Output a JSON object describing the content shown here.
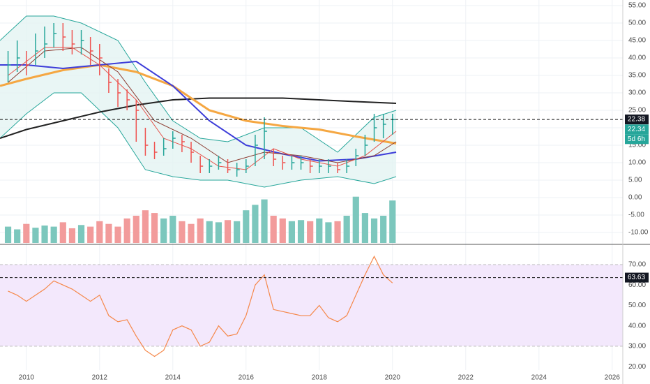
{
  "chart_data": [
    {
      "type": "ohlc",
      "xlim": [
        2009.28,
        2026.29
      ],
      "ylim": [
        -13.4,
        56.6
      ],
      "grid": true,
      "yticks": [
        {
          "value": 55,
          "label": "55.00"
        },
        {
          "value": 50,
          "label": "50.00"
        },
        {
          "value": 45,
          "label": "45.00"
        },
        {
          "value": 40,
          "label": "40.00"
        },
        {
          "value": 35,
          "label": "35.00"
        },
        {
          "value": 30,
          "label": "30.00"
        },
        {
          "value": 25,
          "label": "25.00"
        },
        {
          "value": 20,
          "label": "20.00"
        },
        {
          "value": 15,
          "label": "15.00"
        },
        {
          "value": 10,
          "label": "10.00"
        },
        {
          "value": 5,
          "label": "5.00"
        },
        {
          "value": 0,
          "label": "0.00"
        },
        {
          "value": -5,
          "label": "-5.00"
        },
        {
          "value": -10,
          "label": "-10.00"
        }
      ],
      "colors": {
        "up": "#26a69a",
        "down": "#ef5350"
      },
      "x": [
        2009.5,
        2009.75,
        2010,
        2010.25,
        2010.5,
        2010.75,
        2011,
        2011.25,
        2011.5,
        2011.75,
        2012,
        2012.25,
        2012.5,
        2012.75,
        2013,
        2013.25,
        2013.5,
        2013.75,
        2014,
        2014.25,
        2014.5,
        2014.75,
        2015,
        2015.25,
        2015.5,
        2015.75,
        2016,
        2016.25,
        2016.5,
        2016.75,
        2017,
        2017.25,
        2017.5,
        2017.75,
        2018,
        2018.25,
        2018.5,
        2018.75,
        2019,
        2019.25,
        2019.5,
        2019.75,
        2020
      ],
      "high": [
        42,
        45,
        42,
        47,
        49,
        50,
        50,
        48,
        48,
        46,
        44,
        37,
        34,
        31,
        28,
        20,
        16,
        17,
        19,
        18,
        16,
        12,
        11,
        12,
        11,
        10,
        11,
        18,
        23,
        14,
        12,
        12,
        12,
        11,
        11,
        11,
        10,
        11,
        14,
        18,
        24,
        24,
        24
      ],
      "low": [
        33,
        36,
        35,
        38,
        40,
        43,
        42,
        41,
        41,
        38,
        35,
        30,
        26,
        25,
        16,
        12,
        11,
        12,
        14,
        13,
        10,
        7,
        7,
        8,
        7,
        6,
        7,
        9,
        11,
        9,
        8,
        8,
        8,
        7,
        7,
        7,
        7,
        7,
        9,
        12,
        16,
        17,
        18
      ],
      "close": [
        38,
        40,
        38,
        42,
        44,
        47,
        46,
        44,
        45,
        42,
        40,
        33,
        30,
        28,
        25,
        15,
        13,
        14,
        17,
        16,
        13,
        9,
        9,
        10,
        8,
        8,
        9,
        15,
        19,
        11,
        10,
        10,
        10,
        9,
        9,
        9,
        8,
        9,
        12,
        15,
        20,
        21,
        22.34
      ],
      "bollinger": {
        "color": "#26a69a",
        "fill": "#e3f4f2",
        "x": [
          2009.28,
          2010,
          2010.75,
          2011.5,
          2012.5,
          2013.25,
          2014,
          2014.75,
          2015.5,
          2016.5,
          2017.5,
          2018.5,
          2019.5,
          2020.1
        ],
        "upper": [
          45,
          52,
          52,
          50,
          45,
          33,
          22,
          17,
          16,
          20,
          20,
          13,
          23,
          25
        ],
        "lower": [
          17,
          24,
          30,
          30,
          20,
          8,
          6,
          5,
          5,
          3,
          5,
          6,
          4,
          6
        ]
      },
      "lines": [
        {
          "color": "#212121",
          "width": 2,
          "x": [
            2009.28,
            2010,
            2011,
            2012,
            2013,
            2014,
            2015,
            2016,
            2017,
            2018,
            2019,
            2020.1
          ],
          "values": [
            17,
            19.5,
            22,
            24.5,
            26.5,
            28,
            28.5,
            28.5,
            28.5,
            28,
            27.5,
            27
          ]
        },
        {
          "color": "#f5a742",
          "width": 3,
          "x": [
            2009.28,
            2010,
            2011,
            2012,
            2013,
            2014,
            2015,
            2016,
            2017,
            2018,
            2019,
            2020.1
          ],
          "values": [
            32,
            34,
            36.5,
            38,
            36,
            32,
            25,
            22,
            20.5,
            19.5,
            17.5,
            15.5
          ]
        },
        {
          "color": "#3d3dd9",
          "width": 2,
          "x": [
            2009.28,
            2010,
            2011,
            2012,
            2013,
            2014,
            2015,
            2016,
            2017,
            2018,
            2019,
            2020.1
          ],
          "values": [
            38,
            38,
            37,
            38,
            39,
            32,
            22,
            15,
            12.5,
            10.5,
            11,
            13
          ]
        },
        {
          "color": "#8b3a2f",
          "width": 1,
          "x": [
            2009.5,
            2010.5,
            2011.5,
            2012.5,
            2013.5,
            2014.5,
            2015.5,
            2016.5,
            2017.5,
            2018.5,
            2019.5,
            2020.1
          ],
          "values": [
            33,
            42,
            43,
            36,
            22,
            17,
            10,
            13,
            12,
            10,
            12,
            16
          ]
        },
        {
          "color": "#e5534b",
          "width": 1,
          "x": [
            2009.5,
            2010.5,
            2011.25,
            2012,
            2013,
            2013.75,
            2014.5,
            2015.25,
            2016,
            2016.75,
            2017.5,
            2018.5,
            2019.25,
            2020.1
          ],
          "values": [
            35,
            43,
            43,
            38,
            28,
            17,
            14,
            9,
            8,
            14,
            11,
            9,
            12,
            19
          ]
        }
      ],
      "last_line": {
        "value": 22.38,
        "label": "22.38"
      },
      "last_close": {
        "value": 22.34,
        "label": "22.34"
      },
      "countdown": "5d 6h"
    },
    {
      "type": "bar",
      "ylim": [
        0,
        100
      ],
      "colors": {
        "up": "#7cc7bd",
        "down": "#f29b9b"
      },
      "x": [
        2009.5,
        2009.75,
        2010,
        2010.25,
        2010.5,
        2010.75,
        2011,
        2011.25,
        2011.5,
        2011.75,
        2012,
        2012.25,
        2012.5,
        2012.75,
        2013,
        2013.25,
        2013.5,
        2013.75,
        2014,
        2014.25,
        2014.5,
        2014.75,
        2015,
        2015.25,
        2015.5,
        2015.75,
        2016,
        2016.25,
        2016.5,
        2016.75,
        2017,
        2017.25,
        2017.5,
        2017.75,
        2018,
        2018.25,
        2018.5,
        2018.75,
        2019,
        2019.25,
        2019.5,
        2019.75,
        2020
      ],
      "values": [
        30,
        25,
        35,
        28,
        32,
        30,
        38,
        27,
        33,
        30,
        40,
        35,
        30,
        45,
        50,
        60,
        55,
        45,
        50,
        40,
        35,
        45,
        40,
        38,
        42,
        40,
        60,
        70,
        80,
        50,
        45,
        40,
        42,
        40,
        45,
        38,
        40,
        50,
        85,
        55,
        45,
        50,
        78
      ]
    },
    {
      "type": "line",
      "xlim": [
        2009.28,
        2026.29
      ],
      "ylim": [
        11.5,
        79.9
      ],
      "color": "#f5884a",
      "band_fill": "#f3e8fc",
      "bands": [
        30,
        70
      ],
      "yticks": [
        {
          "value": 70,
          "label": "70.00"
        },
        {
          "value": 60,
          "label": "60.00"
        },
        {
          "value": 50,
          "label": "50.00"
        },
        {
          "value": 40,
          "label": "40.00"
        },
        {
          "value": 30,
          "label": "30.00"
        },
        {
          "value": 20,
          "label": "20.00"
        }
      ],
      "xticks": [
        2010,
        2012,
        2014,
        2016,
        2018,
        2020,
        2022,
        2024,
        2026
      ],
      "x": [
        2009.5,
        2009.75,
        2010,
        2010.25,
        2010.5,
        2010.75,
        2011,
        2011.25,
        2011.5,
        2011.75,
        2012,
        2012.25,
        2012.5,
        2012.75,
        2013,
        2013.25,
        2013.5,
        2013.75,
        2014,
        2014.25,
        2014.5,
        2014.75,
        2015,
        2015.25,
        2015.5,
        2015.75,
        2016,
        2016.25,
        2016.5,
        2016.75,
        2017,
        2017.25,
        2017.5,
        2017.75,
        2018,
        2018.25,
        2018.5,
        2018.75,
        2019,
        2019.25,
        2019.5,
        2019.75,
        2020
      ],
      "values": [
        57,
        55,
        52,
        55,
        58,
        62,
        60,
        58,
        55,
        52,
        55,
        45,
        42,
        43,
        35,
        28,
        25,
        28,
        38,
        40,
        38,
        30,
        32,
        40,
        35,
        36,
        45,
        60,
        65,
        48,
        47,
        46,
        45,
        45,
        50,
        44,
        42,
        45,
        55,
        65,
        74,
        65,
        61
      ],
      "last_line": {
        "value": 63.63,
        "label": "63.63"
      }
    }
  ]
}
